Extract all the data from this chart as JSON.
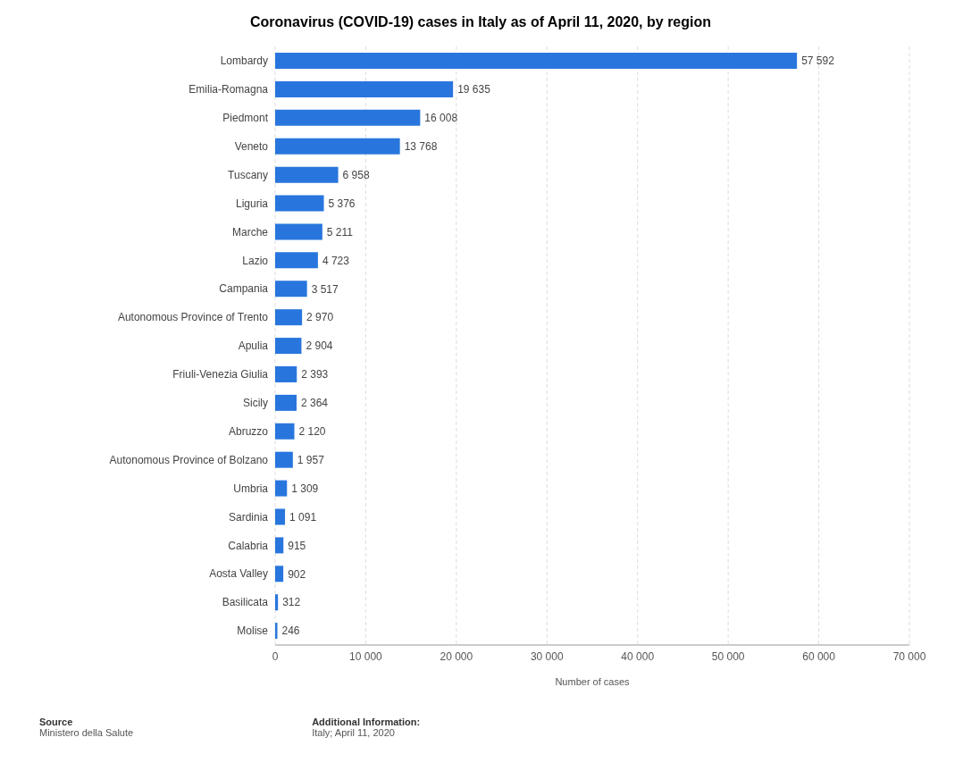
{
  "chart_data": {
    "type": "bar",
    "orientation": "horizontal",
    "title": "Coronavirus (COVID-19) cases in Italy as of April 11, 2020, by region",
    "xlabel": "Number of cases",
    "categories": [
      "Lombardy",
      "Emilia-Romagna",
      "Piedmont",
      "Veneto",
      "Tuscany",
      "Liguria",
      "Marche",
      "Lazio",
      "Campania",
      "Autonomous Province of Trento",
      "Apulia",
      "Friuli-Venezia Giulia",
      "Sicily",
      "Abruzzo",
      "Autonomous Province of Bolzano",
      "Umbria",
      "Sardinia",
      "Calabria",
      "Aosta Valley",
      "Basilicata",
      "Molise"
    ],
    "values": [
      57592,
      19635,
      16008,
      13768,
      6958,
      5376,
      5211,
      4723,
      3517,
      2970,
      2904,
      2393,
      2364,
      2120,
      1957,
      1309,
      1091,
      915,
      902,
      312,
      246
    ],
    "value_labels": [
      "57 592",
      "19 635",
      "16 008",
      "13 768",
      "6 958",
      "5 376",
      "5 211",
      "4 723",
      "3 517",
      "2 970",
      "2 904",
      "2 393",
      "2 364",
      "2 120",
      "1 957",
      "1 309",
      "1 091",
      "915",
      "902",
      "312",
      "246"
    ],
    "color": "#2876dd",
    "xlim": [
      0,
      70000
    ],
    "xticks": [
      0,
      {
        "value": 10000,
        "label": "10 000"
      },
      {
        "value": 20000,
        "label": "20 000"
      },
      {
        "value": 30000,
        "label": "30 000"
      },
      {
        "value": 40000,
        "label": "40 000"
      },
      {
        "value": 50000,
        "label": "50 000"
      },
      {
        "value": 60000,
        "label": "60 000"
      },
      {
        "value": 70000,
        "label": "70 000"
      }
    ],
    "grid": "x",
    "legend": false,
    "annotations": [
      "Source",
      "Ministero della Salute",
      "Additional Information:",
      "Italy; April 11, 2020"
    ]
  }
}
